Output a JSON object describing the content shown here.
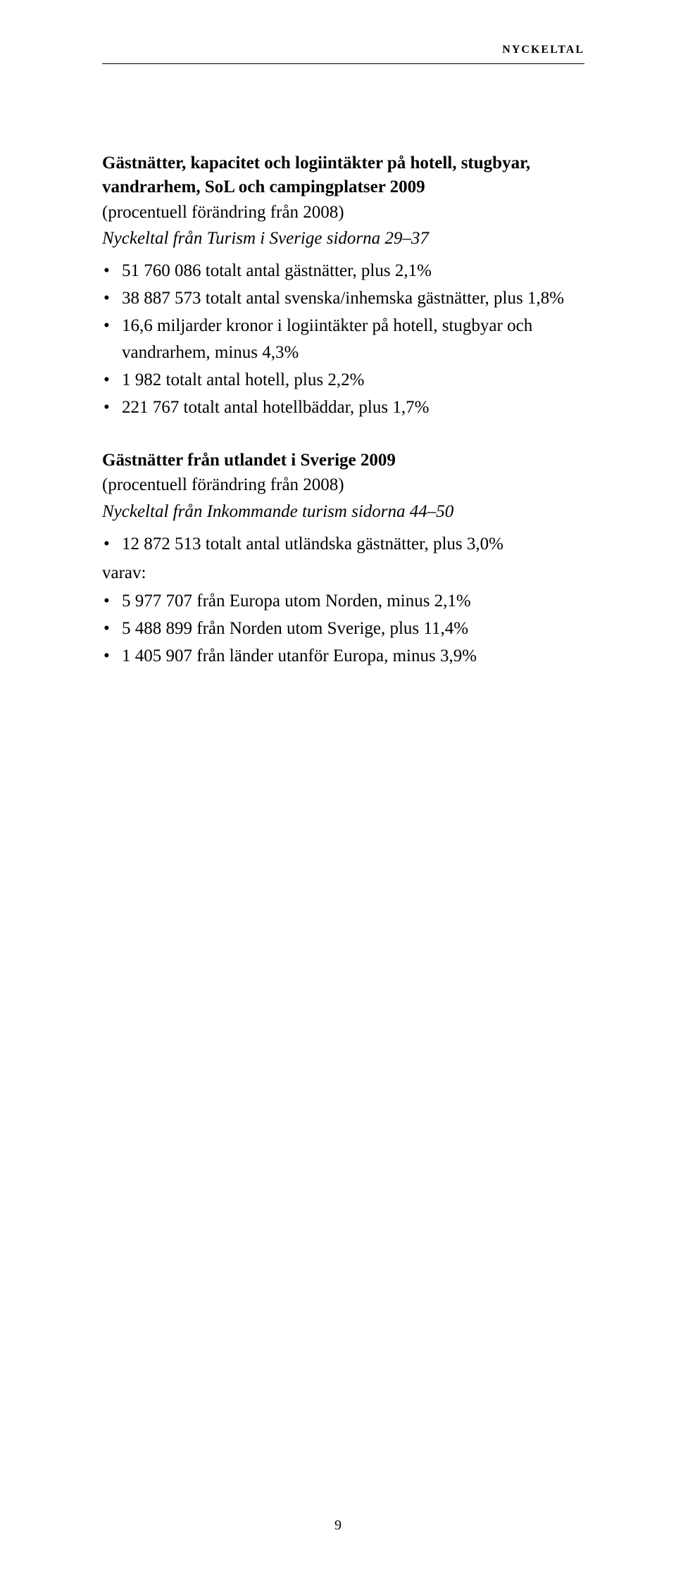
{
  "header": {
    "label": "NYCKELTAL"
  },
  "section1": {
    "title": "Gästnätter, kapacitet och logiintäkter på hotell, stugbyar, vandrarhem, SoL och campingplatser 2009",
    "sub": "(procentuell förändring från 2008)",
    "source": "Nyckeltal från Turism i Sverige sidorna 29–37",
    "items": [
      "51 760 086 totalt antal gästnätter, plus 2,1%",
      "38 887 573 totalt antal svenska/inhemska gästnätter, plus 1,8%",
      "16,6 miljarder kronor i logiintäkter på hotell, stugbyar och vandrarhem, minus 4,3%",
      "1 982 totalt antal hotell, plus 2,2%",
      "221 767 totalt antal hotellbäddar, plus 1,7%"
    ]
  },
  "section2": {
    "title": "Gästnätter från utlandet i Sverige 2009",
    "sub": "(procentuell förändring från 2008)",
    "source": "Nyckeltal från Inkommande turism sidorna 44–50",
    "items_before": [
      "12 872 513 totalt antal utländska gästnätter, plus 3,0%"
    ],
    "varav_label": "varav:",
    "items_after": [
      "5 977 707 från Europa utom Norden, minus 2,1%",
      "5 488 899 från Norden utom Sverige, plus 11,4%",
      "1 405 907 från länder utanför Europa, minus 3,9%"
    ]
  },
  "page_number": "9"
}
